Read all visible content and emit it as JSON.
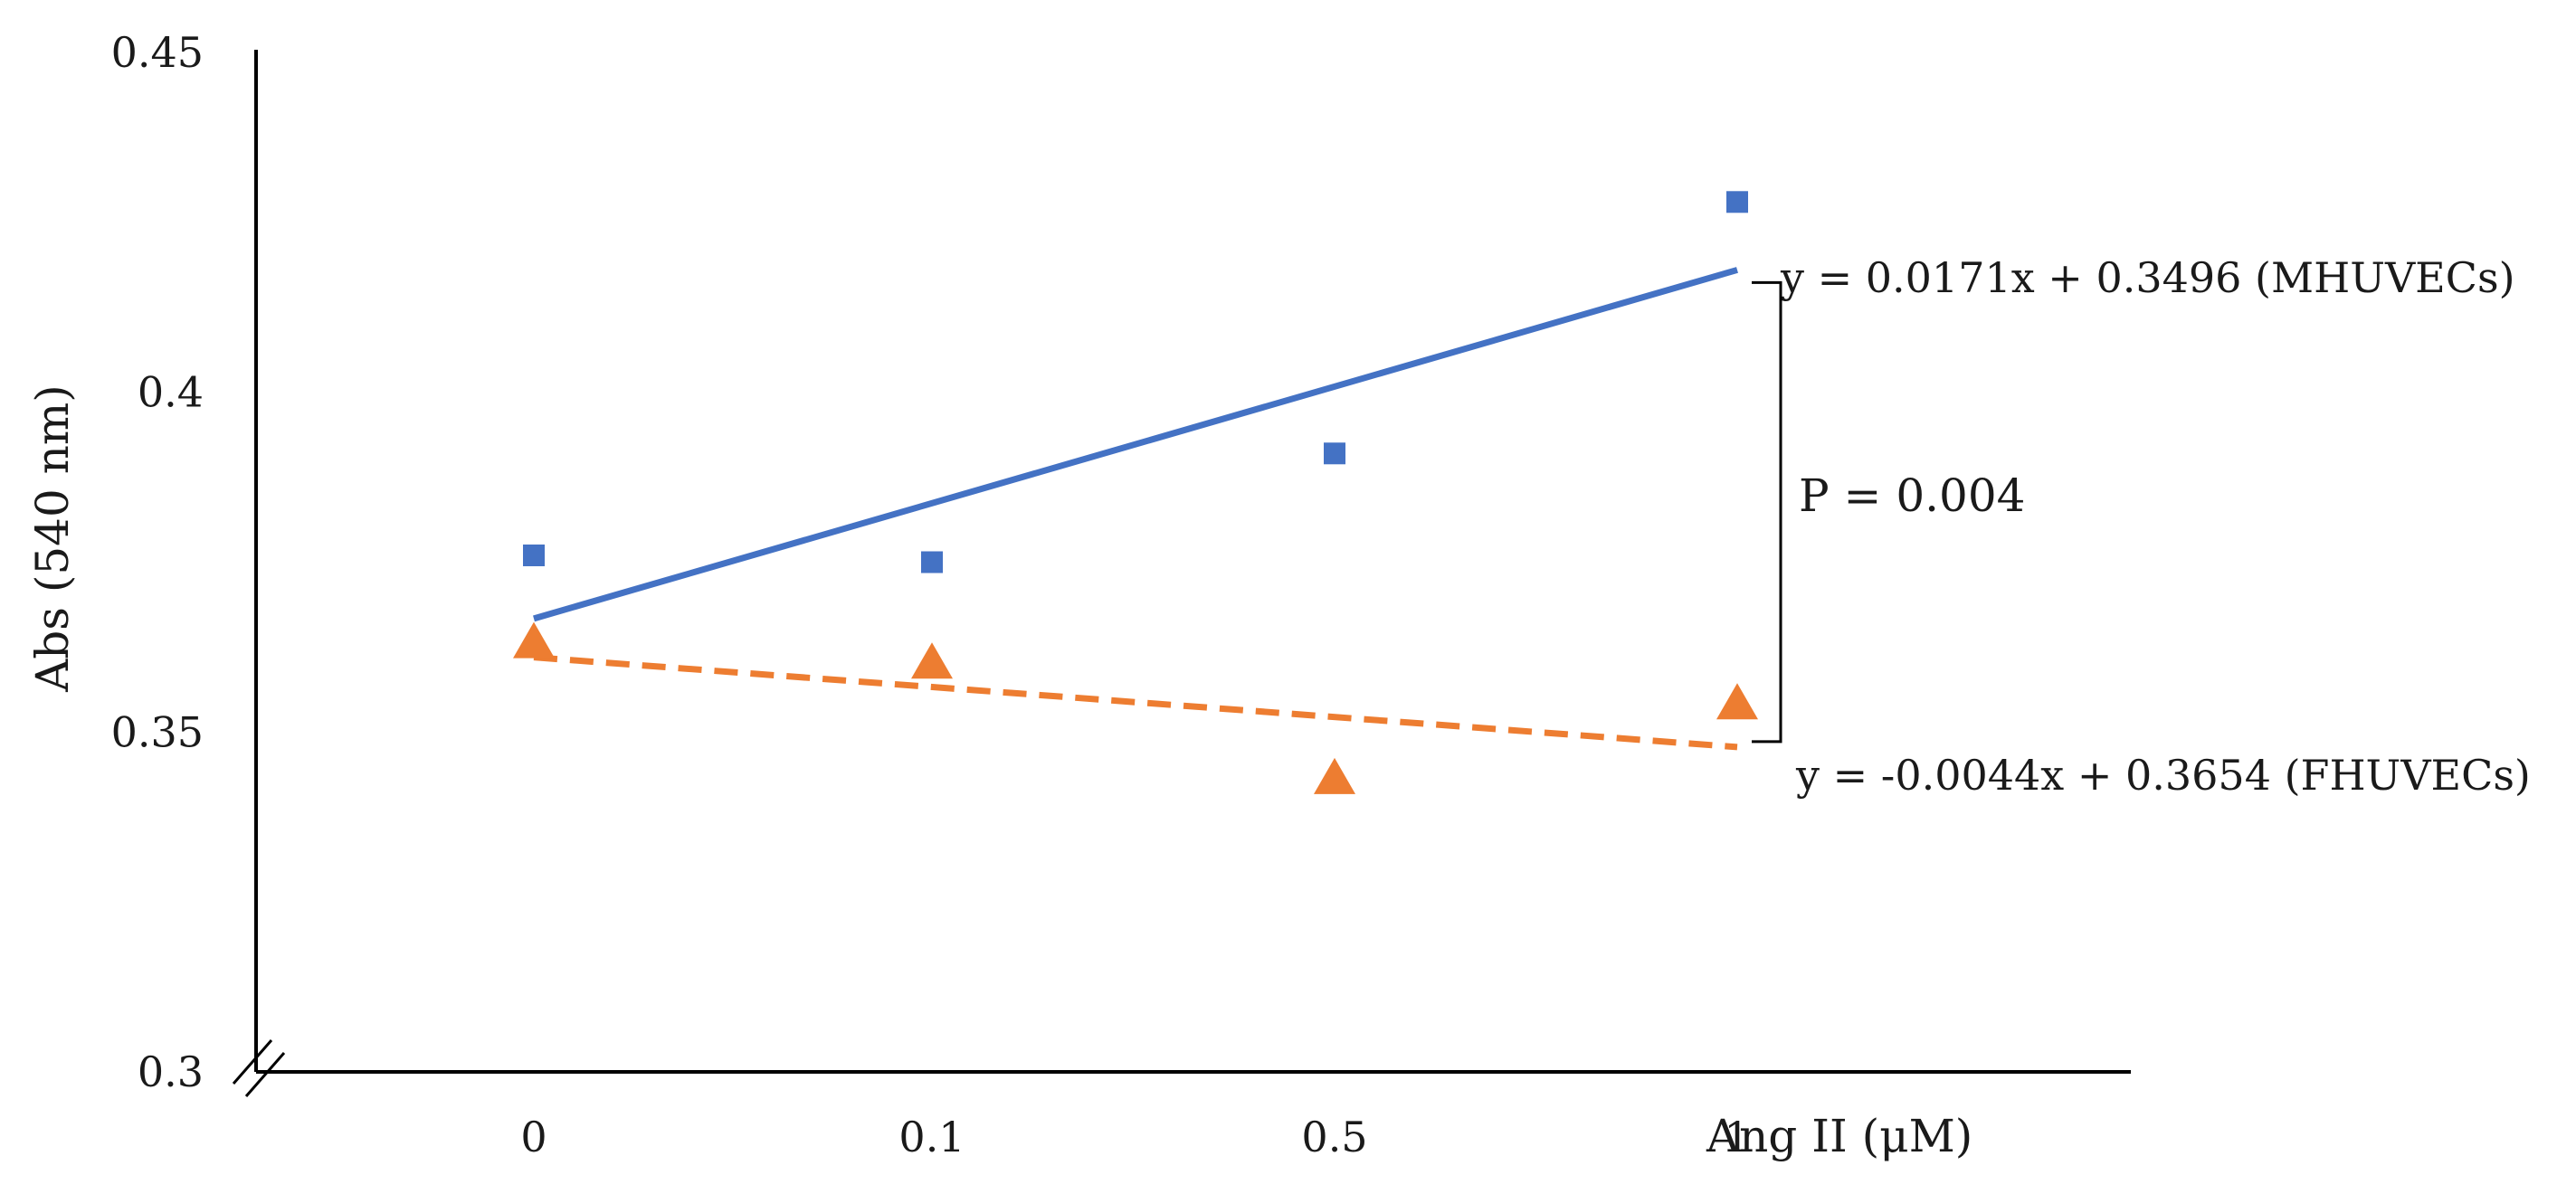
{
  "chart_data": {
    "type": "scatter",
    "title": "",
    "xlabel": "Ang II (μM)",
    "ylabel": "Abs (540 nm)",
    "categories": [
      "0",
      "0.1",
      "0.5",
      "1"
    ],
    "ylim": [
      0.3,
      0.45
    ],
    "yticks": [
      "0.3",
      "0.35",
      "0.4",
      "0.45"
    ],
    "ytick_values": [
      0.3,
      0.35,
      0.4,
      0.45
    ],
    "series": [
      {
        "name": "MHUVECs",
        "marker": "square",
        "color": "#4472c4",
        "trendline_style": "solid",
        "values": [
          0.376,
          0.375,
          0.391,
          0.428
        ],
        "trendline": {
          "slope": 0.0171,
          "intercept": 0.3496
        },
        "equation": "y = 0.0171x + 0.3496  (MHUVECs)"
      },
      {
        "name": "FHUVECs",
        "marker": "triangle",
        "color": "#ed7d31",
        "trendline_style": "dashed",
        "values": [
          0.363,
          0.36,
          0.343,
          0.354
        ],
        "trendline": {
          "slope": -0.0044,
          "intercept": 0.3654
        },
        "equation": "y = -0.0044x + 0.3654 (FHUVECs)"
      }
    ],
    "annotation": "P = 0.004",
    "grid": false,
    "legend": "none"
  }
}
